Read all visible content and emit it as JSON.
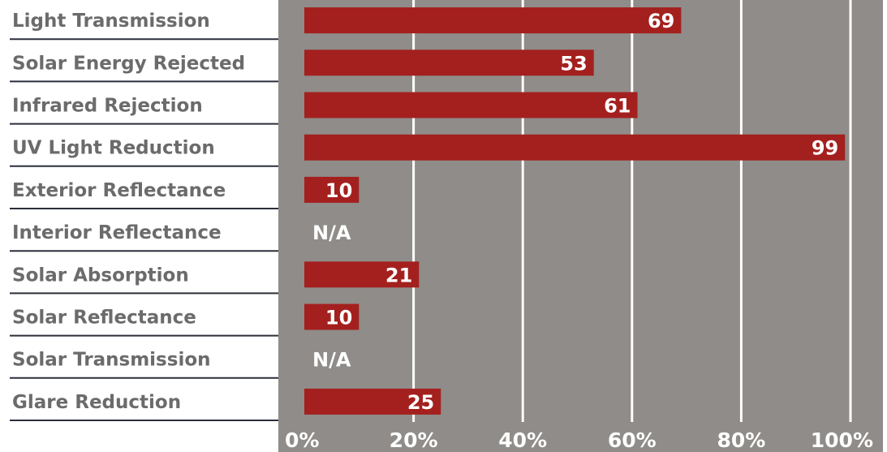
{
  "chart_data": {
    "type": "bar",
    "orientation": "horizontal",
    "categories": [
      "Light Transmission",
      "Solar Energy Rejected",
      "Infrared Rejection",
      "UV Light Reduction",
      "Exterior Reflectance",
      "Interior Reflectance",
      "Solar Absorption",
      "Solar Reflectance",
      "Solar Transmission",
      "Glare Reduction"
    ],
    "values": [
      69,
      53,
      61,
      99,
      10,
      null,
      21,
      10,
      null,
      25
    ],
    "value_labels": [
      "69",
      "53",
      "61",
      "99",
      "10",
      "N/A",
      "21",
      "10",
      "N/A",
      "25"
    ],
    "xlim": [
      0,
      100
    ],
    "x_ticks": [
      0,
      20,
      40,
      60,
      80,
      100
    ],
    "x_tick_labels": [
      "0%",
      "20%",
      "40%",
      "60%",
      "80%",
      "100%"
    ],
    "grid": true,
    "legend": "none",
    "colors": {
      "bar": "#a3201e",
      "plot_background": "#8f8c89",
      "grid": "#ffffff",
      "category_text": "#6b6b6b",
      "separator": "#2b2f3a",
      "value_text": "#ffffff"
    }
  }
}
